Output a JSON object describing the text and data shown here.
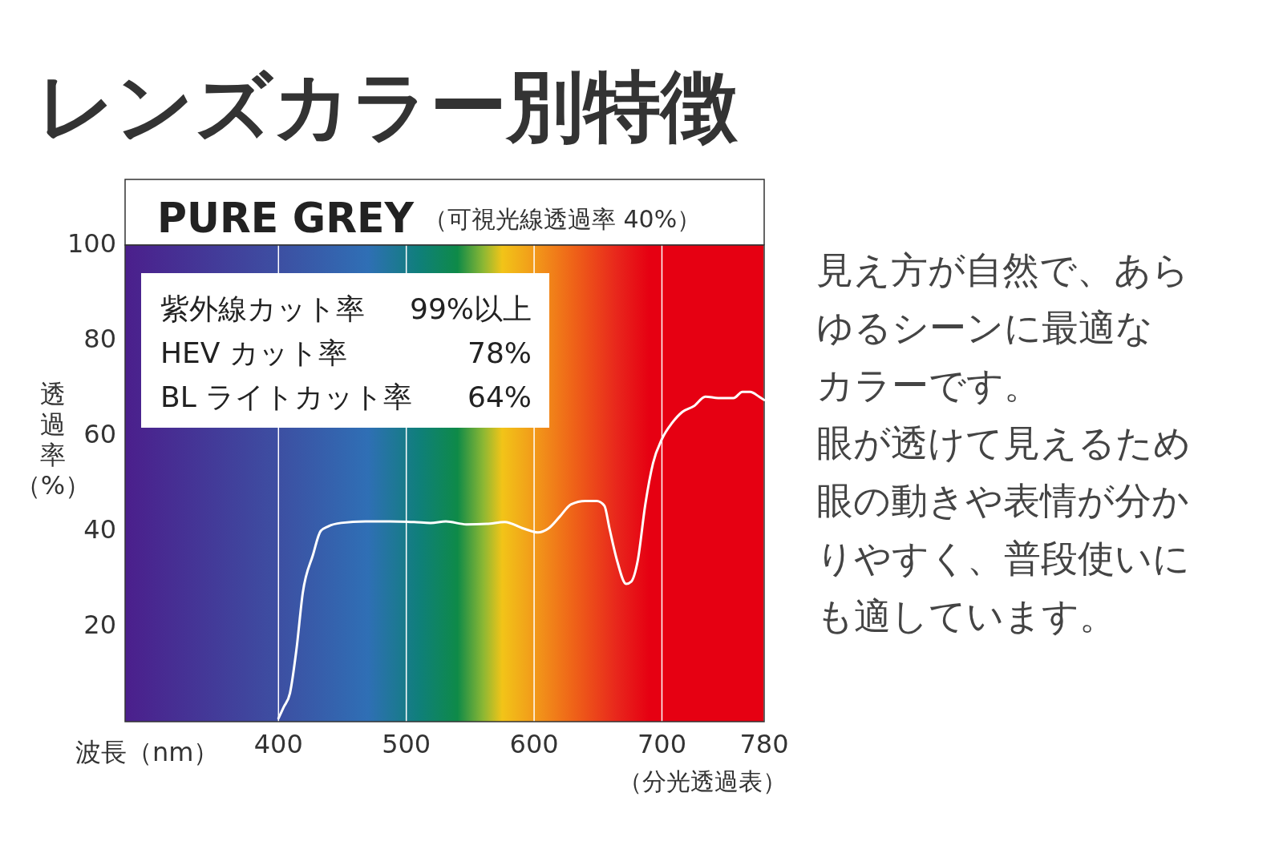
{
  "chart_data": {
    "type": "line",
    "title": "レンズカラー別特徴",
    "subtitle": "PURE GREY",
    "xlabel": "波長（nm）",
    "ylabel": "透過率（%）",
    "annotations": [
      "（可視光線透過率 40%）",
      "紫外線カット率",
      "99%以上",
      "HEV カット率",
      "78%",
      "BL ライトカット率",
      "64%",
      "（分光透過表）",
      "見え方が自然で、あら",
      "ゆるシーンに最適な",
      "カラーです。",
      "眼が透けて見えるため",
      "眼の動きや表情が分か",
      "りやすく、普段使いに",
      "も適しています。"
    ],
    "xlim": [
      280,
      780
    ],
    "ylim": [
      0,
      100
    ],
    "xticks": [
      400,
      500,
      600,
      700,
      780
    ],
    "yticks": [
      20,
      40,
      60,
      80,
      100
    ],
    "grid": "x",
    "marker": "none",
    "line_style": "solid",
    "series": [
      {
        "color": "#ffffff",
        "x": [
          400,
          404,
          409,
          414,
          419,
          427,
          433,
          439,
          449,
          468,
          487,
          506,
          519,
          531,
          547,
          563,
          577,
          592,
          603,
          611,
          620,
          629,
          640,
          649,
          655,
          659,
          665,
          672,
          676,
          681,
          687,
          693,
          700,
          708,
          716,
          725,
          734,
          744,
          756,
          763,
          769,
          776,
          780
        ],
        "values": [
          0.7,
          3,
          6,
          15,
          27,
          35,
          40,
          41,
          41.7,
          42,
          42,
          41.9,
          41.7,
          42,
          41.4,
          41.5,
          41.9,
          40.5,
          39.7,
          40.5,
          43,
          45.6,
          46.3,
          46.3,
          45.3,
          40.5,
          33.7,
          28.9,
          29.4,
          33.7,
          45.6,
          54.2,
          59.3,
          62.7,
          65,
          66.2,
          68.2,
          67.9,
          67.9,
          69.2,
          69.2,
          68.2,
          67.5
        ]
      }
    ]
  }
}
